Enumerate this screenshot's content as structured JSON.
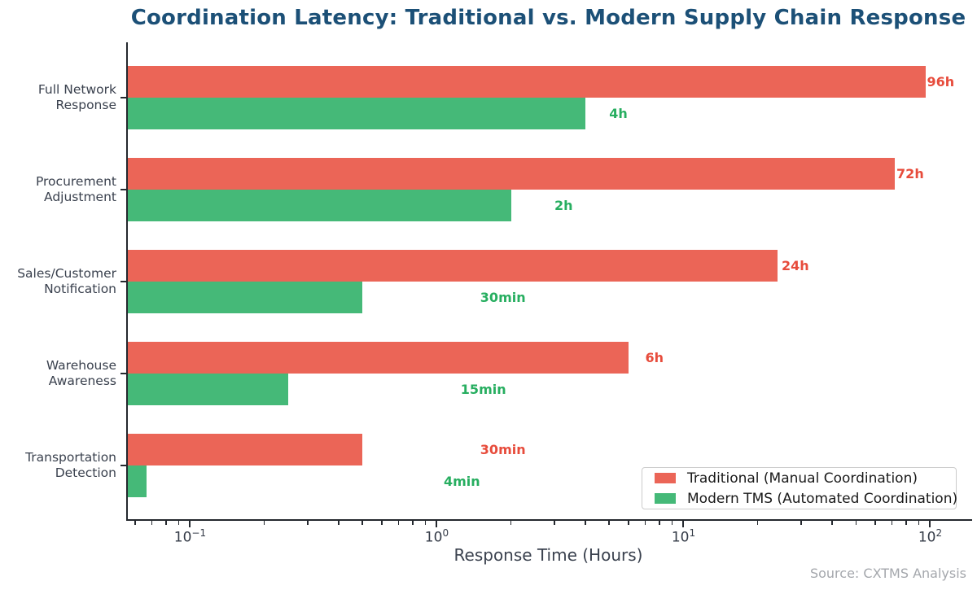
{
  "colors": {
    "traditional_bar": "#eb6557",
    "traditional_label": "#e74c3c",
    "modern_bar": "#45b978",
    "modern_label": "#27ae60",
    "title": "#1c5077",
    "axis_text": "#3a414e",
    "spine": "#24282e",
    "source_text": "#a4a7ac"
  },
  "chart_data": {
    "type": "bar",
    "orientation": "horizontal",
    "x_scale": "log",
    "title": "Coordination Latency: Traditional vs. Modern Supply Chain Response",
    "xlabel": "Response Time (Hours)",
    "source": "Source: CXTMS Analysis",
    "grid": false,
    "legend_position": "lower right",
    "x_range": [
      0.0551,
      145.7
    ],
    "x_ticks": [
      {
        "value": 0.1,
        "exponent": "−1"
      },
      {
        "value": 1,
        "exponent": "0"
      },
      {
        "value": 10,
        "exponent": "1"
      },
      {
        "value": 100,
        "exponent": "2"
      }
    ],
    "categories": [
      [
        "Full Network",
        "Response"
      ],
      [
        "Procurement",
        "Adjustment"
      ],
      [
        "Sales/Customer",
        "Notification"
      ],
      [
        "Warehouse",
        "Awareness"
      ],
      [
        "Transportation",
        "Detection"
      ]
    ],
    "series": [
      {
        "name": "Traditional (Manual Coordination)",
        "color": "#eb6557",
        "label_color": "#e74c3c",
        "values_hours": [
          96,
          72,
          24,
          6,
          0.5
        ],
        "value_labels": [
          "96h",
          "72h",
          "24h",
          "6h",
          "30min"
        ]
      },
      {
        "name": "Modern TMS (Automated Coordination)",
        "color": "#45b978",
        "label_color": "#27ae60",
        "values_hours": [
          4,
          2,
          0.5,
          0.25,
          0.0667
        ],
        "value_labels": [
          "4h",
          "2h",
          "30min",
          "15min",
          "4min"
        ]
      }
    ]
  }
}
